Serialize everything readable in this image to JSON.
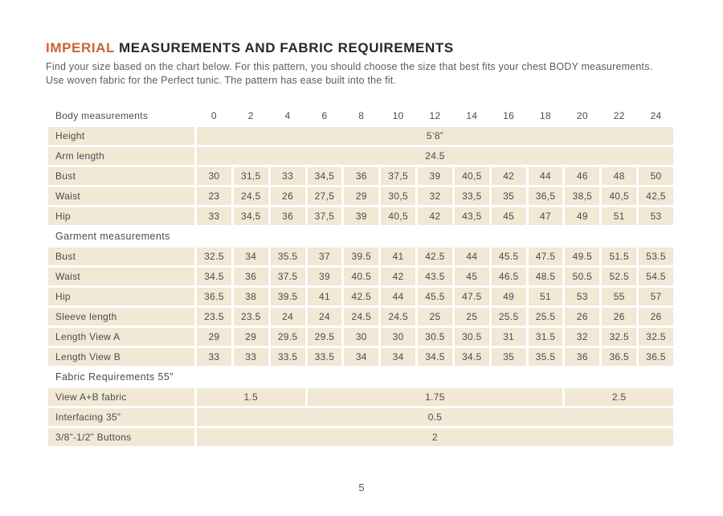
{
  "header": {
    "title_accent": "IMPERIAL",
    "title_rest": "MEASUREMENTS AND FABRIC REQUIREMENTS",
    "accent_color": "#cd6333"
  },
  "intro": {
    "line1": "Find your size based on the chart below. For this pattern, you should choose the size that best fits your chest BODY measurements.",
    "line2": "Use woven fabric for the Perfect tunic. The pattern has ease built into the fit."
  },
  "table": {
    "cell_color": "#f1e8d5",
    "header_label": "Body measurements",
    "sizes": [
      "0",
      "2",
      "4",
      "6",
      "8",
      "10",
      "12",
      "14",
      "16",
      "18",
      "20",
      "22",
      "24"
    ],
    "rows": [
      {
        "type": "span",
        "label": "Height",
        "value": "5‘8”"
      },
      {
        "type": "span",
        "label": "Arm length",
        "value": "24.5"
      },
      {
        "type": "data",
        "label": "Bust",
        "values": [
          "30",
          "31,5",
          "33",
          "34,5",
          "36",
          "37,5",
          "39",
          "40,5",
          "42",
          "44",
          "46",
          "48",
          "50"
        ]
      },
      {
        "type": "data",
        "label": "Waist",
        "values": [
          "23",
          "24,5",
          "26",
          "27,5",
          "29",
          "30,5",
          "32",
          "33,5",
          "35",
          "36,5",
          "38,5",
          "40,5",
          "42,5"
        ]
      },
      {
        "type": "data",
        "label": "Hip",
        "values": [
          "33",
          "34,5",
          "36",
          "37,5",
          "39",
          "40,5",
          "42",
          "43,5",
          "45",
          "47",
          "49",
          "51",
          "53"
        ]
      },
      {
        "type": "section",
        "label": "Garment measurements"
      },
      {
        "type": "data",
        "label": "Bust",
        "values": [
          "32.5",
          "34",
          "35.5",
          "37",
          "39.5",
          "41",
          "42.5",
          "44",
          "45.5",
          "47.5",
          "49.5",
          "51.5",
          "53.5"
        ]
      },
      {
        "type": "data",
        "label": "Waist",
        "values": [
          "34.5",
          "36",
          "37.5",
          "39",
          "40.5",
          "42",
          "43.5",
          "45",
          "46.5",
          "48.5",
          "50.5",
          "52.5",
          "54.5"
        ]
      },
      {
        "type": "data",
        "label": "Hip",
        "values": [
          "36.5",
          "38",
          "39.5",
          "41",
          "42.5",
          "44",
          "45.5",
          "47.5",
          "49",
          "51",
          "53",
          "55",
          "57"
        ]
      },
      {
        "type": "data",
        "label": "Sleeve length",
        "values": [
          "23.5",
          "23.5",
          "24",
          "24",
          "24.5",
          "24.5",
          "25",
          "25",
          "25.5",
          "25.5",
          "26",
          "26",
          "26"
        ]
      },
      {
        "type": "data",
        "label": "Length View A",
        "values": [
          "29",
          "29",
          "29.5",
          "29.5",
          "30",
          "30",
          "30.5",
          "30.5",
          "31",
          "31.5",
          "32",
          "32.5",
          "32.5"
        ]
      },
      {
        "type": "data",
        "label": "Length View B",
        "values": [
          "33",
          "33",
          "33.5",
          "33.5",
          "34",
          "34",
          "34.5",
          "34.5",
          "35",
          "35.5",
          "36",
          "36.5",
          "36.5"
        ]
      },
      {
        "type": "section",
        "label": "Fabric Requirements 55”"
      },
      {
        "type": "multispan",
        "label": "View A+B fabric",
        "segments": [
          {
            "span": 3,
            "value": "1.5"
          },
          {
            "span": 7,
            "value": "1.75"
          },
          {
            "span": 3,
            "value": "2.5"
          }
        ]
      },
      {
        "type": "span",
        "label": "Interfacing 35”",
        "value": "0.5"
      },
      {
        "type": "span",
        "label": "3/8”-1/2” Buttons",
        "value": "2"
      }
    ]
  },
  "footer": {
    "page_number": "5"
  }
}
